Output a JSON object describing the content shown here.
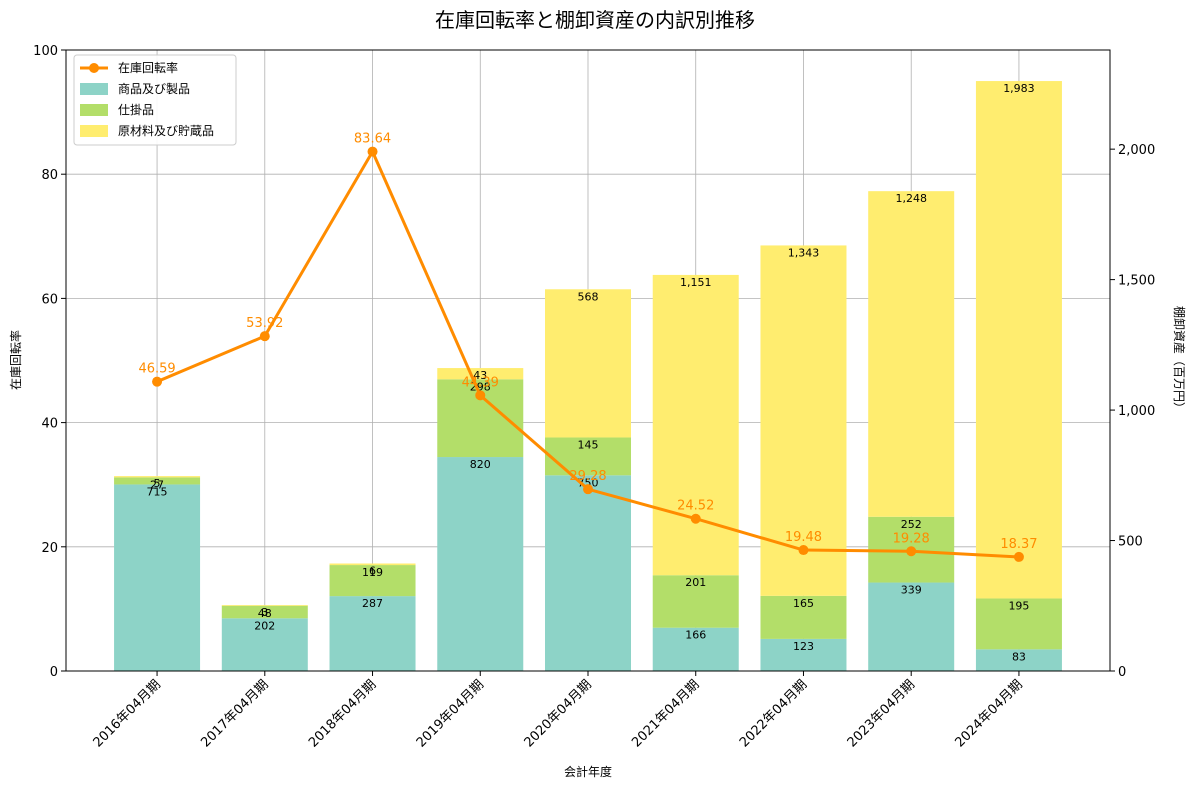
{
  "chart_data": {
    "type": "bar",
    "title": "在庫回転率と棚卸資産の内訳別推移",
    "xlabel": "会計年度",
    "ylabel_left": "在庫回転率",
    "ylabel_right": "棚卸資産（百万円）",
    "ylim_left": [
      0,
      100
    ],
    "ylim_right": [
      0,
      2380
    ],
    "yticks_left": [
      "0",
      "20",
      "40",
      "60",
      "80",
      "100"
    ],
    "yticks_right": [
      "0",
      "500",
      "1,000",
      "1,500",
      "2,000"
    ],
    "grid": true,
    "legend_position": "top-left",
    "categories": [
      "2016年04月期",
      "2017年04月期",
      "2018年04月期",
      "2019年04月期",
      "2020年04月期",
      "2021年04月期",
      "2022年04月期",
      "2023年04月期",
      "2024年04月期"
    ],
    "series": [
      {
        "name": "商品及び製品",
        "kind": "bar",
        "axis": "right",
        "color": "#8dd3c7",
        "values": [
          715,
          202,
          287,
          820,
          750,
          166,
          123,
          339,
          83
        ],
        "labels": [
          "715",
          "202",
          "287",
          "820",
          "750",
          "166",
          "123",
          "339",
          "83"
        ]
      },
      {
        "name": "仕掛品",
        "kind": "bar",
        "axis": "right",
        "color": "#b3de69",
        "values": [
          27,
          48,
          119,
          298,
          145,
          201,
          165,
          252,
          195
        ],
        "labels": [
          "27",
          "48",
          "119",
          "298",
          "145",
          "201",
          "165",
          "252",
          "195"
        ]
      },
      {
        "name": "原材料及び貯蔵品",
        "kind": "bar",
        "axis": "right",
        "color": "#ffed6f",
        "values": [
          5,
          3,
          6,
          43,
          568,
          1151,
          1343,
          1248,
          1983
        ],
        "labels": [
          "5",
          "3",
          "6",
          "43",
          "568",
          "1,151",
          "1,343",
          "1,248",
          "1,983"
        ]
      },
      {
        "name": "在庫回転率",
        "kind": "line",
        "axis": "left",
        "color": "#ff8c00",
        "values": [
          46.59,
          53.92,
          83.64,
          44.39,
          29.28,
          24.52,
          19.48,
          19.28,
          18.37
        ],
        "labels": [
          "46.59",
          "53.92",
          "83.64",
          "44.39",
          "29.28",
          "24.52",
          "19.48",
          "19.28",
          "18.37"
        ]
      }
    ],
    "legend": [
      "在庫回転率",
      "商品及び製品",
      "仕掛品",
      "原材料及び貯蔵品"
    ]
  }
}
